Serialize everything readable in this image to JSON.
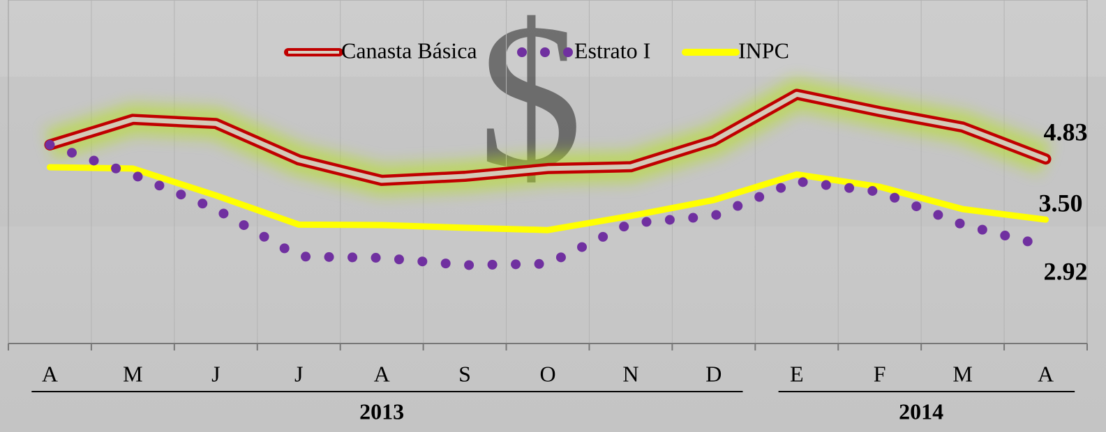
{
  "chart_data": {
    "type": "line",
    "categories": [
      "A",
      "M",
      "J",
      "J",
      "A",
      "S",
      "O",
      "N",
      "D",
      "E",
      "F",
      "M",
      "A"
    ],
    "years": [
      "2013",
      "2013",
      "2013",
      "2013",
      "2013",
      "2013",
      "2013",
      "2013",
      "2013",
      "2014",
      "2014",
      "2014",
      "2014"
    ],
    "ylim": [
      0.78,
      8.32
    ],
    "legend": "top",
    "series": [
      {
        "name": "Canasta Básica",
        "color": "#c00000",
        "style": "double",
        "values": [
          5.14,
          5.7,
          5.61,
          4.81,
          4.36,
          4.45,
          4.62,
          4.66,
          5.23,
          6.25,
          5.87,
          5.53,
          4.83
        ],
        "value_labels": [
          null,
          null,
          null,
          null,
          null,
          null,
          null,
          null,
          null,
          null,
          null,
          null,
          "4.83"
        ]
      },
      {
        "name": "Estrato I",
        "color": "#7030a0",
        "style": "dotted",
        "values": [
          5.14,
          4.49,
          3.73,
          2.69,
          2.66,
          2.5,
          2.53,
          3.42,
          3.58,
          4.34,
          4.11,
          3.39,
          2.92
        ],
        "value_labels": [
          null,
          null,
          null,
          null,
          null,
          null,
          null,
          null,
          null,
          null,
          null,
          null,
          "2.92"
        ]
      },
      {
        "name": "INPC",
        "color": "#ffff00",
        "style": "solid",
        "values": [
          4.65,
          4.62,
          4.03,
          3.39,
          3.38,
          3.32,
          3.27,
          3.58,
          3.93,
          4.49,
          4.22,
          3.73,
          3.5
        ],
        "value_labels": [
          null,
          null,
          null,
          null,
          null,
          null,
          null,
          null,
          null,
          null,
          null,
          null,
          "3.50"
        ]
      }
    ]
  }
}
